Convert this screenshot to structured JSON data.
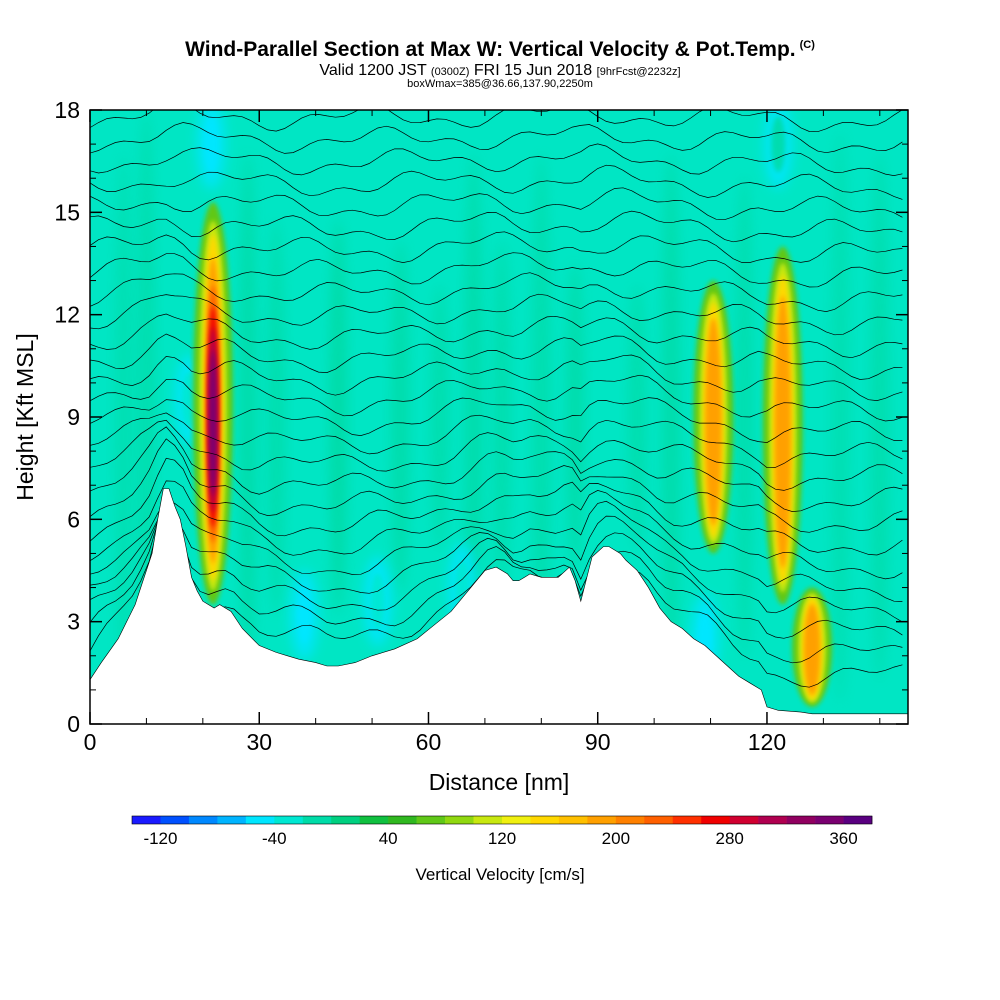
{
  "header": {
    "title": "Wind-Parallel Section at Max W: Vertical Velocity & Pot.Temp.",
    "copyright": "(C)",
    "valid_main": "Valid 1200 JST",
    "valid_utc": "(0300Z)",
    "valid_date": "FRI 15 Jun 2018",
    "forecast": "[9hrFcst@2232z]",
    "box_info": "boxWmax=385@36.66,137.90,2250m"
  },
  "chart_data": {
    "type": "heatmap",
    "xlabel": "Distance [nm]",
    "ylabel": "Height [Kft MSL]",
    "xlim": [
      0,
      145
    ],
    "ylim": [
      0,
      18
    ],
    "x_ticks": [
      0,
      30,
      60,
      90,
      120
    ],
    "y_ticks": [
      0,
      3,
      6,
      9,
      12,
      15,
      18
    ],
    "terrain": {
      "x": [
        0,
        2,
        5,
        8,
        11,
        12,
        13,
        14,
        15,
        16,
        17,
        18,
        19,
        20,
        21,
        22,
        23,
        25,
        27,
        30,
        33,
        35,
        37,
        40,
        42,
        44,
        47,
        50,
        54,
        58,
        61,
        64,
        66,
        68,
        70,
        72,
        74,
        75,
        76,
        77,
        78,
        80,
        83,
        85,
        86,
        87,
        89,
        91,
        92,
        94,
        95,
        97,
        99,
        101,
        103,
        105,
        107,
        109,
        111,
        113,
        115,
        117,
        119,
        120,
        122,
        126,
        128,
        130,
        132,
        135,
        140,
        145
      ],
      "height": [
        1.3,
        1.8,
        2.5,
        3.5,
        5.0,
        6.0,
        6.9,
        6.9,
        6.4,
        6.0,
        5.2,
        4.3,
        3.9,
        3.6,
        3.5,
        3.4,
        3.5,
        3.3,
        2.8,
        2.3,
        2.1,
        2.0,
        1.9,
        1.8,
        1.7,
        1.7,
        1.8,
        2.0,
        2.2,
        2.5,
        2.9,
        3.3,
        3.7,
        4.1,
        4.5,
        4.6,
        4.4,
        4.2,
        4.2,
        4.3,
        4.4,
        4.3,
        4.3,
        4.6,
        4.2,
        3.6,
        4.9,
        5.2,
        5.2,
        5.0,
        4.8,
        4.5,
        4.0,
        3.4,
        3.0,
        2.8,
        2.5,
        2.3,
        2.0,
        1.7,
        1.4,
        1.2,
        1.0,
        0.5,
        0.4,
        0.35,
        0.3,
        0.3,
        0.3,
        0.3,
        0.3,
        0.3
      ]
    },
    "updrafts": [
      {
        "x": 21.8,
        "ybot": 3.5,
        "ytop": 15.3,
        "peak_cms": 340
      },
      {
        "x": 110.5,
        "ybot": 5.0,
        "ytop": 13.0,
        "peak_cms": 180
      },
      {
        "x": 122.8,
        "ybot": 3.5,
        "ytop": 14.0,
        "peak_cms": 170
      },
      {
        "x": 128.0,
        "ybot": 0.5,
        "ytop": 4.0,
        "peak_cms": 150
      }
    ],
    "downdrafts": [
      {
        "x": 17.5,
        "y": 9.5,
        "min_cms": -60
      },
      {
        "x": 21.5,
        "y": 17.0,
        "min_cms": -70
      },
      {
        "x": 38.0,
        "y": 3.2,
        "min_cms": -70
      },
      {
        "x": 51.0,
        "y": 3.6,
        "min_cms": -60
      },
      {
        "x": 66.0,
        "y": 4.0,
        "min_cms": -60
      },
      {
        "x": 109.0,
        "y": 2.5,
        "min_cms": -80
      },
      {
        "x": 122.0,
        "y": 17.0,
        "min_cms": -40
      }
    ],
    "colorbar": {
      "label": "Vertical Velocity [cm/s]",
      "tick_labels": [
        "-120",
        "-40",
        "40",
        "120",
        "200",
        "280",
        "360"
      ],
      "colors": [
        "#1a1aff",
        "#0050ff",
        "#0088ff",
        "#00b4ff",
        "#00e6ff",
        "#00e8d2",
        "#00dca8",
        "#00d080",
        "#10c040",
        "#30b820",
        "#60c818",
        "#90d810",
        "#c8e810",
        "#f0f010",
        "#ffd800",
        "#ffc000",
        "#ffa000",
        "#ff8000",
        "#ff6000",
        "#ff3000",
        "#f00000",
        "#d00030",
        "#b00050",
        "#900060",
        "#7a0070",
        "#5a0080"
      ]
    }
  }
}
